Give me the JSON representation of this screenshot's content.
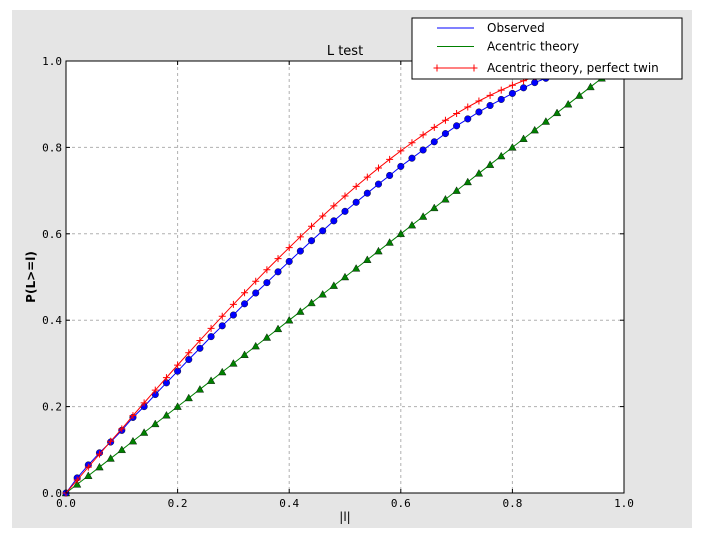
{
  "chart_data": {
    "type": "line",
    "title": "L test",
    "xlabel": "|l|",
    "ylabel": "P(L>=l)",
    "xlim": [
      0,
      1
    ],
    "ylim": [
      0,
      1
    ],
    "grid": true,
    "legend_position": "top-right",
    "xticks": [
      "0.0",
      "0.2",
      "0.4",
      "0.6",
      "0.8",
      "1.0"
    ],
    "yticks": [
      "0.0",
      "0.2",
      "0.4",
      "0.6",
      "0.8",
      "1.0"
    ],
    "x": [
      0,
      0.02,
      0.04,
      0.06,
      0.08,
      0.1,
      0.12,
      0.14,
      0.16,
      0.18,
      0.2,
      0.22,
      0.24,
      0.26,
      0.28,
      0.3,
      0.32,
      0.34,
      0.36,
      0.38,
      0.4,
      0.42,
      0.44,
      0.46,
      0.48,
      0.5,
      0.52,
      0.54,
      0.56,
      0.58,
      0.6,
      0.62,
      0.64,
      0.66,
      0.68,
      0.7,
      0.72,
      0.74,
      0.76,
      0.78,
      0.8,
      0.82,
      0.84,
      0.86,
      0.88,
      0.9,
      0.92,
      0.94,
      0.96,
      0.98,
      1.0
    ],
    "series": [
      {
        "name": "Observed",
        "color": "#0000ff",
        "marker": "circle",
        "values": [
          0,
          0.035,
          0.065,
          0.093,
          0.118,
          0.145,
          0.175,
          0.2,
          0.228,
          0.255,
          0.282,
          0.309,
          0.335,
          0.362,
          0.387,
          0.412,
          0.438,
          0.463,
          0.487,
          0.512,
          0.536,
          0.56,
          0.584,
          0.607,
          0.63,
          0.652,
          0.673,
          0.694,
          0.715,
          0.735,
          0.756,
          0.775,
          0.794,
          0.813,
          0.832,
          0.85,
          0.866,
          0.882,
          0.897,
          0.911,
          0.925,
          0.938,
          0.95,
          0.96,
          0.97,
          0.978,
          0.985,
          0.99,
          0.995,
          0.998,
          1.0
        ]
      },
      {
        "name": "Acentric theory",
        "color": "#008000",
        "marker": "triangle",
        "values": [
          0,
          0.02,
          0.04,
          0.06,
          0.08,
          0.1,
          0.12,
          0.14,
          0.16,
          0.18,
          0.2,
          0.22,
          0.24,
          0.26,
          0.28,
          0.3,
          0.32,
          0.34,
          0.36,
          0.38,
          0.4,
          0.42,
          0.44,
          0.46,
          0.48,
          0.5,
          0.52,
          0.54,
          0.56,
          0.58,
          0.6,
          0.62,
          0.64,
          0.66,
          0.68,
          0.7,
          0.72,
          0.74,
          0.76,
          0.78,
          0.8,
          0.82,
          0.84,
          0.86,
          0.88,
          0.9,
          0.92,
          0.94,
          0.96,
          0.98,
          1.0
        ]
      },
      {
        "name": "Acentric theory, perfect twin",
        "color": "#ff0000",
        "marker": "plus",
        "values": [
          0,
          0.03,
          0.06,
          0.0899,
          0.1197,
          0.1485,
          0.1791,
          0.2086,
          0.238,
          0.2671,
          0.296,
          0.3247,
          0.3531,
          0.3812,
          0.409,
          0.4365,
          0.4636,
          0.4903,
          0.5167,
          0.5426,
          0.568,
          0.593,
          0.6174,
          0.6413,
          0.6647,
          0.6875,
          0.7097,
          0.7313,
          0.7522,
          0.7724,
          0.792,
          0.8108,
          0.8289,
          0.8463,
          0.8628,
          0.8785,
          0.8934,
          0.9074,
          0.9205,
          0.9327,
          0.944,
          0.9543,
          0.9636,
          0.972,
          0.9793,
          0.9855,
          0.9907,
          0.9947,
          0.9976,
          0.9994,
          1.0
        ]
      }
    ]
  }
}
